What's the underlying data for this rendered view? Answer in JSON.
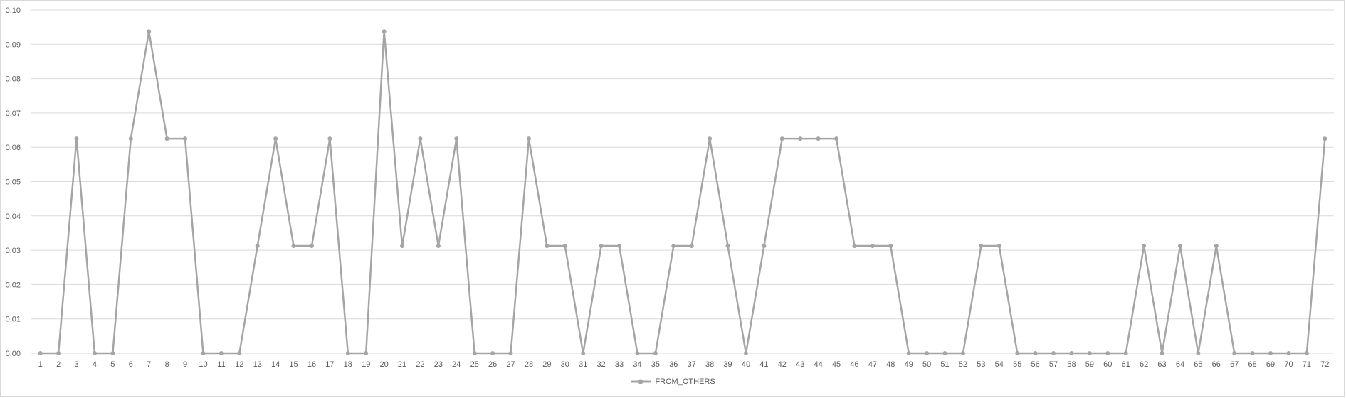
{
  "chart_data": {
    "type": "line",
    "title": "",
    "xlabel": "",
    "ylabel": "",
    "ylim": [
      0,
      0.1
    ],
    "y_ticks": [
      "0.00",
      "0.01",
      "0.02",
      "0.03",
      "0.04",
      "0.05",
      "0.06",
      "0.07",
      "0.08",
      "0.09",
      "0.10"
    ],
    "grid": "horizontal",
    "legend_position": "bottom",
    "categories": [
      "1",
      "2",
      "3",
      "4",
      "5",
      "6",
      "7",
      "8",
      "9",
      "10",
      "11",
      "12",
      "13",
      "14",
      "15",
      "16",
      "17",
      "18",
      "19",
      "20",
      "21",
      "22",
      "23",
      "24",
      "25",
      "26",
      "27",
      "28",
      "29",
      "30",
      "31",
      "32",
      "33",
      "34",
      "35",
      "36",
      "37",
      "38",
      "39",
      "40",
      "41",
      "42",
      "43",
      "44",
      "45",
      "46",
      "47",
      "48",
      "49",
      "50",
      "51",
      "52",
      "53",
      "54",
      "55",
      "56",
      "57",
      "58",
      "59",
      "60",
      "61",
      "62",
      "63",
      "64",
      "65",
      "66",
      "67",
      "68",
      "69",
      "70",
      "71",
      "72"
    ],
    "series": [
      {
        "name": "FROM_OTHERS",
        "color": "#a5a5a5",
        "values": [
          0,
          0,
          0.0625,
          0,
          0,
          0.0625,
          0.09375,
          0.0625,
          0.0625,
          0,
          0,
          0,
          0.03125,
          0.0625,
          0.03125,
          0.03125,
          0.0625,
          0,
          0,
          0.09375,
          0.03125,
          0.0625,
          0.03125,
          0.0625,
          0,
          0,
          0,
          0.0625,
          0.03125,
          0.03125,
          0,
          0.03125,
          0.03125,
          0,
          0,
          0.03125,
          0.03125,
          0.0625,
          0.03125,
          0,
          0.03125,
          0.0625,
          0.0625,
          0.0625,
          0.0625,
          0.03125,
          0.03125,
          0.03125,
          0,
          0,
          0,
          0,
          0.03125,
          0.03125,
          0,
          0,
          0,
          0,
          0,
          0,
          0,
          0.03125,
          0,
          0.03125,
          0,
          0.03125,
          0,
          0,
          0,
          0,
          0,
          0.0625
        ]
      }
    ]
  },
  "colors": {
    "grid": "#d9d9d9",
    "axis": "#d9d9d9",
    "series": "#a5a5a5",
    "text": "#595959"
  }
}
